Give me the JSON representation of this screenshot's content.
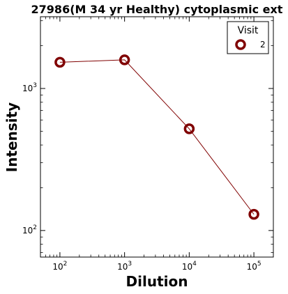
{
  "chart_data": {
    "type": "line",
    "title": "27986(M 34 yr Healthy) cytoplasmic ext",
    "xlabel": "Dilution",
    "ylabel": "Intensity",
    "xscale": "log",
    "yscale": "log",
    "xlim": [
      50,
      200000
    ],
    "ylim": [
      65,
      3200
    ],
    "x_ticks": [
      {
        "value": 100,
        "base": "10",
        "exp": "2"
      },
      {
        "value": 1000,
        "base": "10",
        "exp": "3"
      },
      {
        "value": 10000,
        "base": "10",
        "exp": "4"
      },
      {
        "value": 100000,
        "base": "10",
        "exp": "5"
      }
    ],
    "y_ticks": [
      {
        "value": 100,
        "base": "10",
        "exp": "2"
      },
      {
        "value": 1000,
        "base": "10",
        "exp": "3"
      }
    ],
    "series": [
      {
        "name": "2",
        "color": "#800000",
        "marker": "open-circle",
        "x": [
          100,
          1000,
          10000,
          100000
        ],
        "y": [
          1530,
          1590,
          520,
          130
        ]
      }
    ],
    "legend": {
      "title": "Visit",
      "position": "top-right"
    },
    "grid": false
  }
}
